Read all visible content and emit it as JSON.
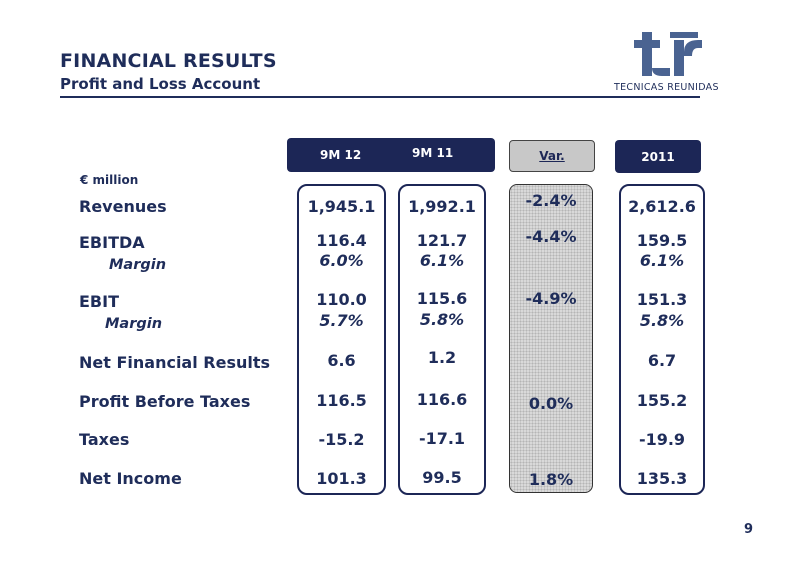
{
  "header": {
    "title": "FINANCIAL RESULTS",
    "subtitle": "Profit and Loss Account",
    "logo_text": "TECNICAS REUNIDAS"
  },
  "columns": {
    "c1": "9M 12",
    "c2": "9M 11",
    "var": "Var.",
    "c3": "2011"
  },
  "unit": "€ million",
  "rows": {
    "revenues": {
      "label": "Revenues",
      "m12": "1,945.1",
      "m11": "1,992.1",
      "var": "-2.4%",
      "y2011": "2,612.6"
    },
    "ebitda": {
      "label": "EBITDA",
      "m12": "116.4",
      "m11": "121.7",
      "var": "-4.4%",
      "y2011": "159.5"
    },
    "ebitda_margin": {
      "label": "Margin",
      "m12": "6.0%",
      "m11": "6.1%",
      "y2011": "6.1%"
    },
    "ebit": {
      "label": "EBIT",
      "m12": "110.0",
      "m11": "115.6",
      "var": "-4.9%",
      "y2011": "151.3"
    },
    "ebit_margin": {
      "label": "Margin",
      "m12": "5.7%",
      "m11": "5.8%",
      "y2011": "5.8%"
    },
    "net_financial": {
      "label": "Net Financial Results",
      "m12": "6.6",
      "m11": "1.2",
      "y2011": "6.7"
    },
    "pbt": {
      "label": "Profit Before Taxes",
      "m12": "116.5",
      "m11": "116.6",
      "var": "0.0%",
      "y2011": "155.2"
    },
    "taxes": {
      "label": "Taxes",
      "m12": "-15.2",
      "m11": "-17.1",
      "y2011": "-19.9"
    },
    "net_income": {
      "label": "Net Income",
      "m12": "101.3",
      "m11": "99.5",
      "var": "1.8%",
      "y2011": "135.3"
    }
  },
  "page_number": "9",
  "colors": {
    "navy": "#1c2656",
    "text": "#1f2d5a",
    "var_bg": "#d9d9d9"
  }
}
